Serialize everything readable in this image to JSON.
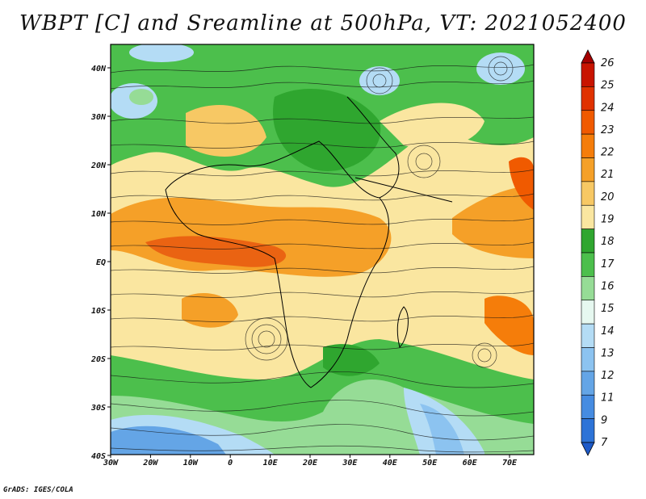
{
  "title": "WBPT [C] and Sreamline at 500hPa, VT: 2021052400",
  "credit": "GrADS: IGES/COLA",
  "map": {
    "lon_labels": [
      "30W",
      "20W",
      "10W",
      "0",
      "10E",
      "20E",
      "30E",
      "40E",
      "50E",
      "60E",
      "70E"
    ],
    "lat_labels": [
      "40N",
      "30N",
      "20N",
      "10N",
      "EQ",
      "10S",
      "20S",
      "30S",
      "40S"
    ]
  },
  "colorbar": {
    "levels": [
      "26",
      "25",
      "24",
      "23",
      "22",
      "21",
      "20",
      "19",
      "18",
      "17",
      "16",
      "15",
      "14",
      "13",
      "12",
      "11",
      "9",
      "7"
    ],
    "colors": [
      "#a50000",
      "#c81400",
      "#e03200",
      "#f05a00",
      "#f57d0a",
      "#f5a028",
      "#f7c864",
      "#fae6a0",
      "#2fa62f",
      "#4cbf4c",
      "#96dc96",
      "#e6f8f0",
      "#b4dcf5",
      "#8cc3f0",
      "#64a5e6",
      "#468ce1",
      "#2d73d7",
      "#1e5ac8"
    ]
  }
}
